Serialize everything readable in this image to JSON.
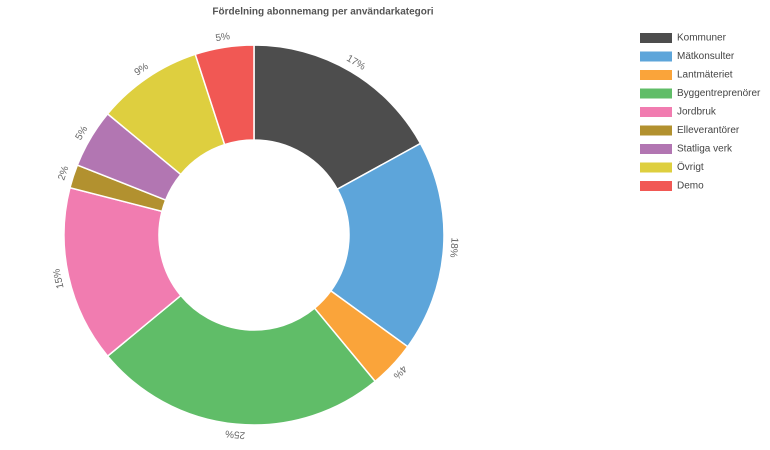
{
  "chart_data": {
    "type": "donut",
    "title": "Fördelning abonnemang per användarkategori",
    "categories": [
      "Kommuner",
      "Mätkonsulter",
      "Lantmäteriet",
      "Byggentreprenörer",
      "Jordbruk",
      "Elleverantörer",
      "Statliga verk",
      "Övrigt",
      "Demo"
    ],
    "values": [
      17,
      18,
      4,
      25,
      15,
      2,
      5,
      9,
      5
    ],
    "value_labels": [
      "17%",
      "18%",
      "4%",
      "25%",
      "15%",
      "2%",
      "5%",
      "9%",
      "5%"
    ],
    "colors": [
      "#4d4d4d",
      "#5da5da",
      "#faa43a",
      "#60bd68",
      "#f17cb0",
      "#b2912f",
      "#b276b2",
      "#decf3f",
      "#f15854"
    ],
    "legend": "top-right"
  }
}
